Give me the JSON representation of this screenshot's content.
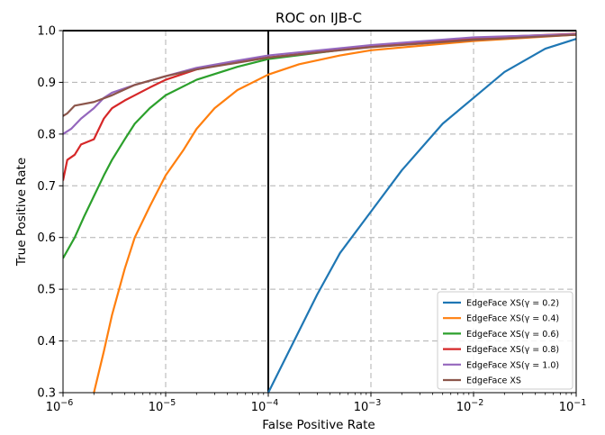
{
  "chart_data": {
    "type": "line",
    "title": "ROC on IJB-C",
    "xlabel": "False Positive Rate",
    "ylabel": "True Positive Rate",
    "x_scale": "log",
    "xlim": [
      1e-06,
      0.1
    ],
    "ylim": [
      0.3,
      1.0
    ],
    "x_ticks": [
      {
        "value": 1e-06,
        "base": "10",
        "exp": "−6"
      },
      {
        "value": 1e-05,
        "base": "10",
        "exp": "−5"
      },
      {
        "value": 0.0001,
        "base": "10",
        "exp": "−4"
      },
      {
        "value": 0.001,
        "base": "10",
        "exp": "−3"
      },
      {
        "value": 0.01,
        "base": "10",
        "exp": "−2"
      },
      {
        "value": 0.1,
        "base": "10",
        "exp": "−1"
      }
    ],
    "y_ticks": [
      "0.3",
      "0.4",
      "0.5",
      "0.6",
      "0.7",
      "0.8",
      "0.9",
      "1.0"
    ],
    "grid": true,
    "legend_position": "lower-right",
    "reference_lines": {
      "vertical_x": 0.0001,
      "horizontal_y": 1.0
    },
    "series": [
      {
        "name": "EdgeFace XS(γ = 0.2)",
        "color": "#1f77b4",
        "points": [
          [
            0.0001,
            0.3
          ],
          [
            0.00015,
            0.37
          ],
          [
            0.0002,
            0.42
          ],
          [
            0.0003,
            0.49
          ],
          [
            0.0005,
            0.57
          ],
          [
            0.001,
            0.65
          ],
          [
            0.002,
            0.73
          ],
          [
            0.005,
            0.82
          ],
          [
            0.01,
            0.87
          ],
          [
            0.02,
            0.92
          ],
          [
            0.05,
            0.965
          ],
          [
            0.1,
            0.984
          ]
        ]
      },
      {
        "name": "EdgeFace XS(γ = 0.4)",
        "color": "#ff7f0e",
        "points": [
          [
            2e-06,
            0.3
          ],
          [
            2.5e-06,
            0.38
          ],
          [
            3e-06,
            0.45
          ],
          [
            4e-06,
            0.54
          ],
          [
            5e-06,
            0.6
          ],
          [
            7e-06,
            0.66
          ],
          [
            1e-05,
            0.72
          ],
          [
            1.5e-05,
            0.77
          ],
          [
            2e-05,
            0.81
          ],
          [
            3e-05,
            0.85
          ],
          [
            5e-05,
            0.885
          ],
          [
            0.0001,
            0.915
          ],
          [
            0.0002,
            0.935
          ],
          [
            0.0005,
            0.952
          ],
          [
            0.001,
            0.962
          ],
          [
            0.01,
            0.98
          ],
          [
            0.1,
            0.992
          ]
        ]
      },
      {
        "name": "EdgeFace XS(γ = 0.6)",
        "color": "#2ca02c",
        "points": [
          [
            1e-06,
            0.56
          ],
          [
            1.3e-06,
            0.6
          ],
          [
            1.6e-06,
            0.64
          ],
          [
            2e-06,
            0.68
          ],
          [
            2.5e-06,
            0.72
          ],
          [
            3e-06,
            0.75
          ],
          [
            4e-06,
            0.79
          ],
          [
            5e-06,
            0.82
          ],
          [
            7e-06,
            0.85
          ],
          [
            1e-05,
            0.875
          ],
          [
            2e-05,
            0.905
          ],
          [
            5e-05,
            0.93
          ],
          [
            0.0001,
            0.945
          ],
          [
            0.001,
            0.97
          ],
          [
            0.01,
            0.985
          ],
          [
            0.1,
            0.993
          ]
        ]
      },
      {
        "name": "EdgeFace XS(γ = 0.8)",
        "color": "#d62728",
        "points": [
          [
            1e-06,
            0.71
          ],
          [
            1.1e-06,
            0.75
          ],
          [
            1.3e-06,
            0.76
          ],
          [
            1.5e-06,
            0.78
          ],
          [
            2e-06,
            0.79
          ],
          [
            2.5e-06,
            0.83
          ],
          [
            3e-06,
            0.85
          ],
          [
            4e-06,
            0.865
          ],
          [
            5e-06,
            0.875
          ],
          [
            7e-06,
            0.89
          ],
          [
            1e-05,
            0.905
          ],
          [
            2e-05,
            0.925
          ],
          [
            5e-05,
            0.94
          ],
          [
            0.0001,
            0.948
          ],
          [
            0.001,
            0.97
          ],
          [
            0.01,
            0.986
          ],
          [
            0.1,
            0.994
          ]
        ]
      },
      {
        "name": "EdgeFace XS(γ = 1.0)",
        "color": "#9467bd",
        "points": [
          [
            1e-06,
            0.8
          ],
          [
            1.2e-06,
            0.81
          ],
          [
            1.5e-06,
            0.83
          ],
          [
            2e-06,
            0.85
          ],
          [
            2.5e-06,
            0.87
          ],
          [
            3e-06,
            0.88
          ],
          [
            5e-06,
            0.895
          ],
          [
            1e-05,
            0.912
          ],
          [
            2e-05,
            0.928
          ],
          [
            5e-05,
            0.942
          ],
          [
            0.0001,
            0.952
          ],
          [
            0.001,
            0.972
          ],
          [
            0.01,
            0.987
          ],
          [
            0.1,
            0.993
          ]
        ]
      },
      {
        "name": "EdgeFace XS",
        "color": "#8c564b",
        "points": [
          [
            1e-06,
            0.835
          ],
          [
            1.1e-06,
            0.84
          ],
          [
            1.3e-06,
            0.855
          ],
          [
            2e-06,
            0.862
          ],
          [
            3e-06,
            0.875
          ],
          [
            5e-06,
            0.895
          ],
          [
            1e-05,
            0.912
          ],
          [
            2e-05,
            0.925
          ],
          [
            5e-05,
            0.938
          ],
          [
            0.0001,
            0.948
          ],
          [
            0.001,
            0.968
          ],
          [
            0.01,
            0.982
          ],
          [
            0.1,
            0.992
          ]
        ]
      }
    ]
  }
}
